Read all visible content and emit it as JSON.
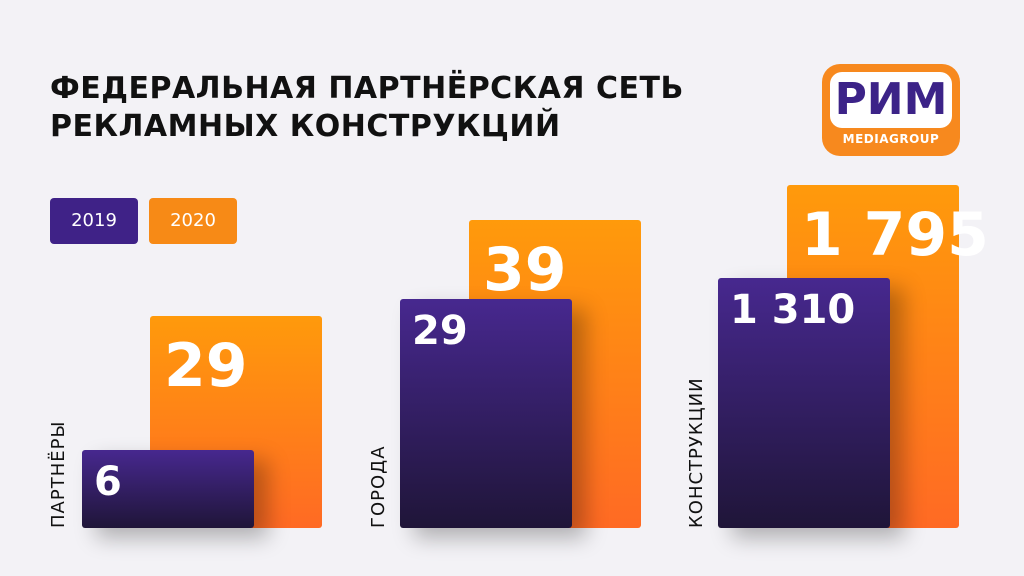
{
  "chart_data": {
    "type": "bar",
    "title": "ФЕДЕРАЛЬНАЯ ПАРТНЁРСКАЯ СЕТЬ РЕКЛАМНЫХ КОНСТРУКЦИЙ",
    "title_lines": [
      "ФЕДЕРАЛЬНАЯ ПАРТНЁРСКАЯ СЕТЬ",
      "РЕКЛАМНЫХ КОНСТРУКЦИЙ"
    ],
    "categories": [
      "ПАРТНЁРЫ",
      "ГОРОДА",
      "КОНСТРУКЦИИ"
    ],
    "series": [
      {
        "name": "2019",
        "values": [
          6,
          29,
          1310
        ],
        "labels": [
          "6",
          "29",
          "1 310"
        ],
        "color": "#3f2287"
      },
      {
        "name": "2020",
        "values": [
          29,
          39,
          1795
        ],
        "labels": [
          "29",
          "39",
          "1 795"
        ],
        "color": "#f78a16"
      }
    ],
    "legend_position": "top-left",
    "grid": false,
    "scale": "independent per category"
  },
  "logo": {
    "main": "РИМ",
    "sub": "MEDIAGROUP",
    "color": "#f7891e",
    "text_color": "#3c2388"
  }
}
